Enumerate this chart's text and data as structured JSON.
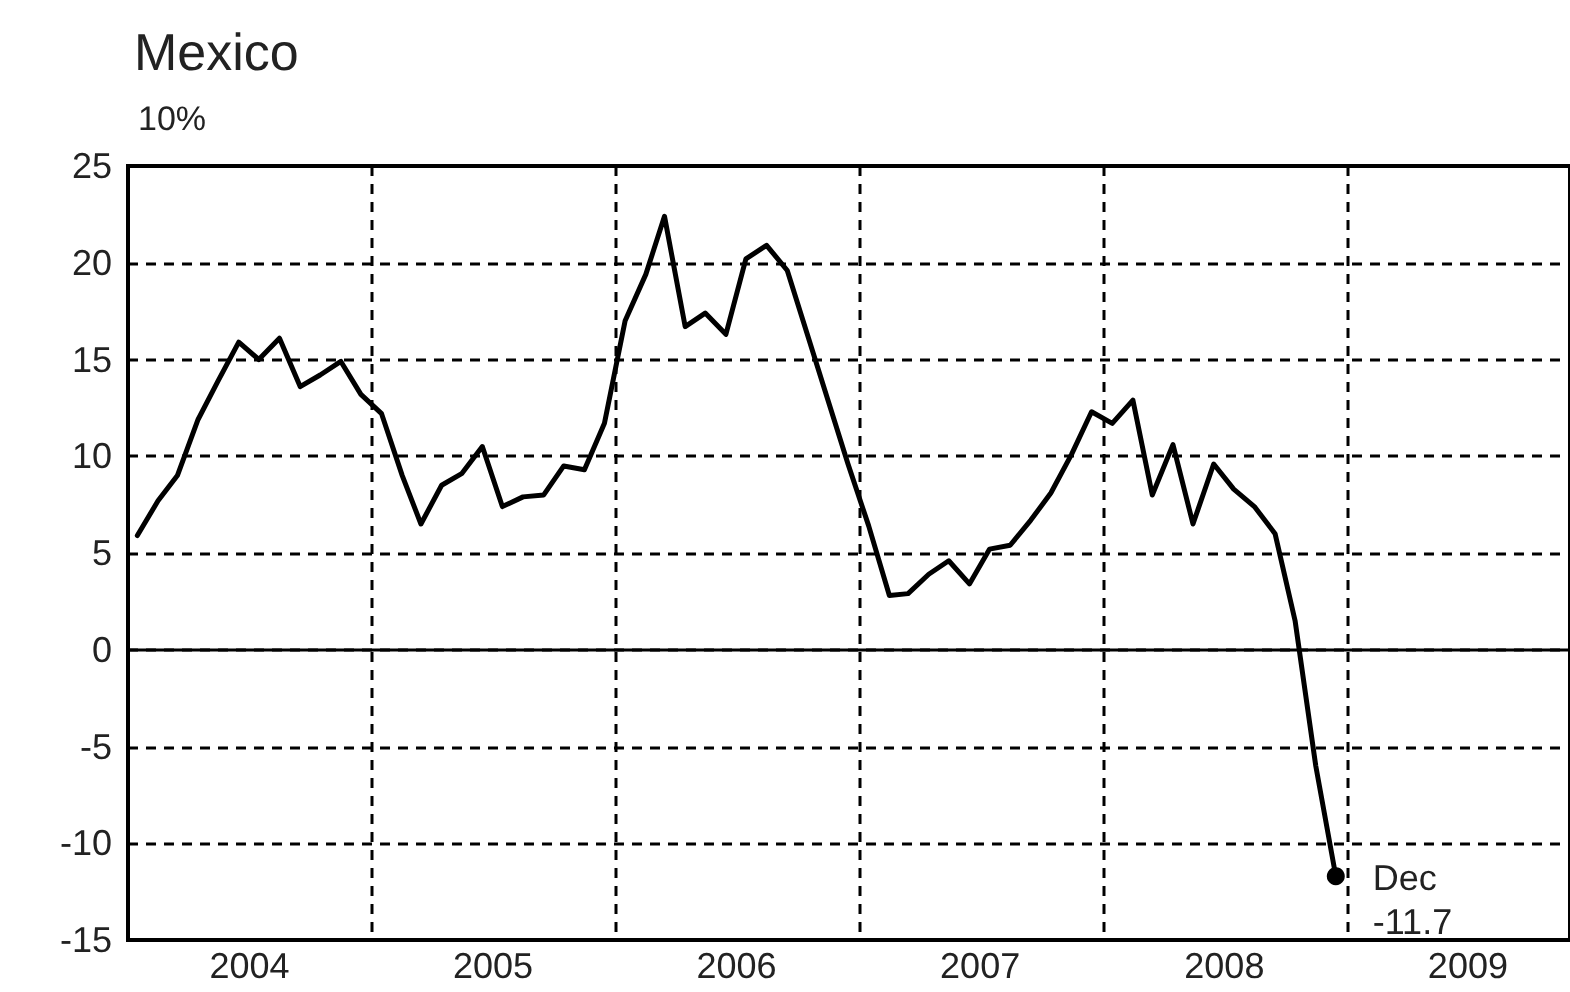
{
  "chart_data": {
    "type": "line",
    "title": "Mexico",
    "ylabel": "10%",
    "x": [
      "2004-01-15",
      "2004-02-15",
      "2004-03-15",
      "2004-04-15",
      "2004-05-15",
      "2004-06-15",
      "2004-07-15",
      "2004-08-15",
      "2004-09-15",
      "2004-10-15",
      "2004-11-15",
      "2004-12-15",
      "2005-01-15",
      "2005-02-15",
      "2005-03-15",
      "2005-04-15",
      "2005-05-15",
      "2005-06-15",
      "2005-07-15",
      "2005-08-15",
      "2005-09-15",
      "2005-10-15",
      "2005-11-15",
      "2005-12-15",
      "2006-01-15",
      "2006-02-15",
      "2006-03-15",
      "2006-04-15",
      "2006-05-15",
      "2006-06-15",
      "2006-07-15",
      "2006-08-15",
      "2006-09-15",
      "2006-10-15",
      "2006-11-15",
      "2006-12-15",
      "2007-01-15",
      "2007-02-15",
      "2007-03-15",
      "2007-04-15",
      "2007-05-15",
      "2007-06-15",
      "2007-07-15",
      "2007-08-15",
      "2007-09-15",
      "2007-10-15",
      "2007-11-15",
      "2007-12-15",
      "2008-01-15",
      "2008-02-15",
      "2008-03-15",
      "2008-04-15",
      "2008-05-15",
      "2008-06-15",
      "2008-07-15",
      "2008-08-15",
      "2008-09-15",
      "2008-10-15",
      "2008-11-15",
      "2008-12-15"
    ],
    "series": [
      {
        "color": "#000000",
        "values": [
          5.9,
          7.7,
          9.0,
          11.9,
          13.9,
          15.9,
          15.0,
          16.1,
          13.6,
          14.2,
          14.9,
          13.2,
          12.2,
          9.0,
          6.5,
          8.5,
          9.1,
          10.5,
          7.4,
          7.9,
          8.0,
          9.5,
          9.3,
          11.7,
          17.0,
          19.4,
          22.4,
          16.7,
          17.4,
          16.3,
          20.2,
          20.9,
          19.6,
          16.3,
          12.9,
          9.6,
          6.4,
          2.8,
          2.9,
          3.9,
          4.6,
          3.4,
          5.2,
          5.4,
          6.7,
          8.1,
          10.1,
          12.3,
          11.7,
          12.9,
          8.0,
          10.6,
          6.5,
          9.6,
          8.3,
          7.4,
          6.0,
          1.5,
          -6.0,
          -11.7
        ]
      }
    ],
    "xlim": [
      "2004-01-01",
      "2009-12-01"
    ],
    "xticks": [
      {
        "value": "2005-01-01",
        "label": null
      },
      {
        "value": "2006-01-01",
        "label": null
      },
      {
        "value": "2007-01-01",
        "label": null
      },
      {
        "value": "2008-01-01",
        "label": null
      },
      {
        "value": "2009-01-01",
        "label": null
      },
      {
        "value": "2004-07-01",
        "label": "2004"
      },
      {
        "value": "2005-07-01",
        "label": "2005"
      },
      {
        "value": "2006-07-01",
        "label": "2006"
      },
      {
        "value": "2007-07-01",
        "label": "2007"
      },
      {
        "value": "2008-07-01",
        "label": "2008"
      },
      {
        "value": "2009-07-01",
        "label": "2009"
      }
    ],
    "ylim": [
      -15,
      25
    ],
    "yticks": [
      -15,
      -10,
      -5,
      0,
      5,
      10,
      15,
      20,
      25
    ],
    "ref_lines": [
      {
        "axis": "y",
        "value": 0,
        "color": "#000000",
        "line_style": "solid"
      }
    ],
    "annotations": [
      {
        "text": "Dec\n-11.7",
        "x": "2008-12-15",
        "y": -11.7
      }
    ],
    "grid": true,
    "marker": "none",
    "line_style": "solid"
  }
}
